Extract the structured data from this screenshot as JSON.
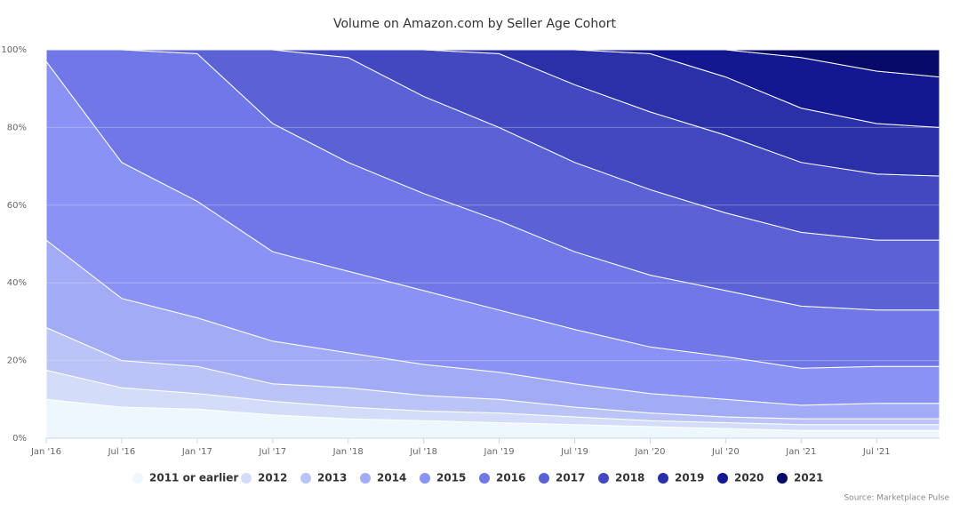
{
  "chart_data": {
    "type": "area",
    "stacked": true,
    "title": "Volume on Amazon.com by Seller Age Cohort",
    "x": [
      0,
      6,
      12,
      18,
      24,
      30,
      36,
      42,
      48,
      54,
      60,
      66,
      71
    ],
    "xlim": [
      0,
      71
    ],
    "xticks": [
      {
        "value": 0,
        "label": "Jan '16"
      },
      {
        "value": 6,
        "label": "Jul '16"
      },
      {
        "value": 12,
        "label": "Jan '17"
      },
      {
        "value": 18,
        "label": "Jul '17"
      },
      {
        "value": 24,
        "label": "Jan '18"
      },
      {
        "value": 30,
        "label": "Jul '18"
      },
      {
        "value": 36,
        "label": "Jan '19"
      },
      {
        "value": 42,
        "label": "Jul '19"
      },
      {
        "value": 48,
        "label": "Jan '20"
      },
      {
        "value": 54,
        "label": "Jul '20"
      },
      {
        "value": 60,
        "label": "Jan '21"
      },
      {
        "value": 66,
        "label": "Jul '21"
      }
    ],
    "ylim": [
      0,
      100
    ],
    "yticks": [
      {
        "value": 0,
        "label": "0%"
      },
      {
        "value": 20,
        "label": "20%"
      },
      {
        "value": 40,
        "label": "40%"
      },
      {
        "value": 60,
        "label": "60%"
      },
      {
        "value": 80,
        "label": "80%"
      },
      {
        "value": 100,
        "label": "100%"
      }
    ],
    "grid": true,
    "legend": "bottom",
    "source": "Source: Marketplace Pulse",
    "series": [
      {
        "name": "2011 or earlier",
        "color": "#eef7fd",
        "values": [
          10,
          8,
          7.5,
          6,
          5,
          4.5,
          4,
          3.5,
          3,
          2.5,
          2,
          2,
          2
        ]
      },
      {
        "name": "2012",
        "color": "#d3dcf8",
        "values": [
          7.5,
          5,
          4,
          3.5,
          3,
          2.5,
          2.5,
          2,
          1.5,
          1.5,
          1.5,
          1.5,
          1.5
        ]
      },
      {
        "name": "2013",
        "color": "#bac4f7",
        "values": [
          11,
          7,
          7,
          4.5,
          5,
          4,
          3.5,
          2.5,
          2,
          1.5,
          1.5,
          1.5,
          1.5
        ]
      },
      {
        "name": "2014",
        "color": "#a2acf6",
        "values": [
          22.5,
          16,
          12.5,
          11,
          9,
          8,
          7,
          6,
          5,
          4.5,
          3.5,
          4,
          4
        ]
      },
      {
        "name": "2015",
        "color": "#8a93f5",
        "values": [
          46,
          35,
          30,
          23,
          21,
          19,
          16,
          14,
          12,
          11,
          9.5,
          9.5,
          9.5
        ]
      },
      {
        "name": "2016",
        "color": "#7078e8",
        "values": [
          3,
          29,
          38,
          33,
          28,
          25,
          23,
          20,
          18.5,
          17,
          16,
          14.5,
          14.5
        ]
      },
      {
        "name": "2017",
        "color": "#5a62d6",
        "values": [
          0,
          0,
          1,
          19,
          27,
          25,
          24,
          23,
          22,
          20,
          19,
          18,
          18
        ]
      },
      {
        "name": "2018",
        "color": "#4249c0",
        "values": [
          0,
          0,
          0,
          0,
          2,
          12,
          19,
          20,
          20,
          20,
          18,
          17,
          16.5
        ]
      },
      {
        "name": "2019",
        "color": "#2a30a8",
        "values": [
          0,
          0,
          0,
          0,
          0,
          0,
          1,
          9,
          15,
          15,
          14,
          13,
          12.5
        ]
      },
      {
        "name": "2020",
        "color": "#141890",
        "values": [
          0,
          0,
          0,
          0,
          0,
          0,
          0,
          0,
          1,
          7,
          13,
          13.5,
          13
        ]
      },
      {
        "name": "2021",
        "color": "#070a66",
        "values": [
          0,
          0,
          0,
          0,
          0,
          0,
          0,
          0,
          0,
          0,
          2,
          5.5,
          7
        ]
      }
    ]
  }
}
